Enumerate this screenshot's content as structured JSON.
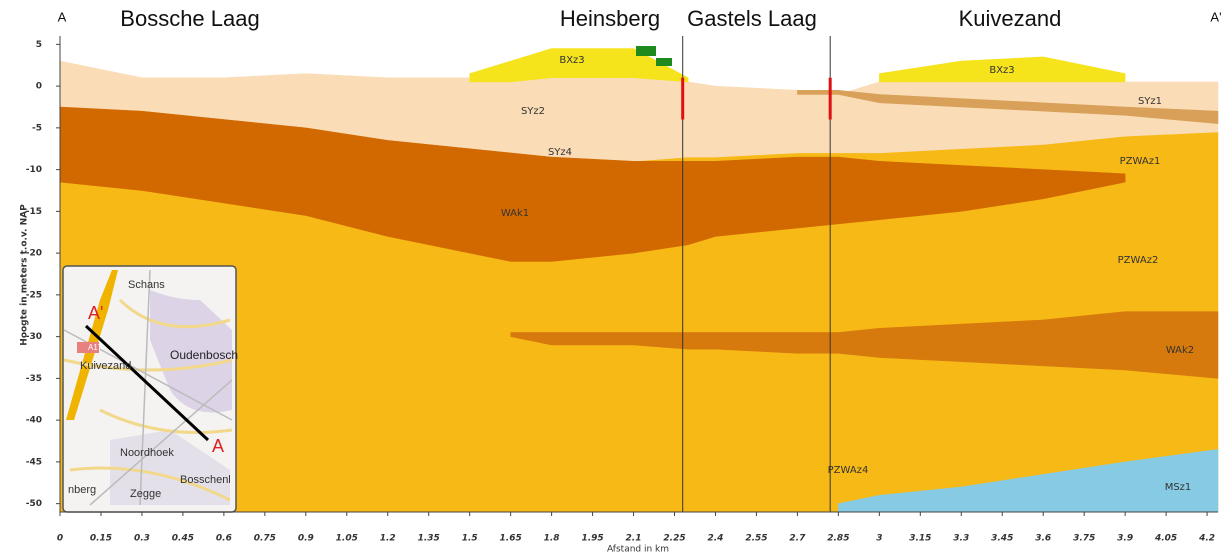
{
  "chart_data": {
    "type": "cross-section",
    "section_labels": [
      "A",
      "Bossche Laag",
      "Heinsberg",
      "Gastels Laag",
      "Kuivezand",
      "A'"
    ],
    "x_label": "Afstand in km",
    "y_label": "Hoogte in meters t.o.v. NAP",
    "xlim": [
      0,
      4.24
    ],
    "ylim": [
      -51,
      6
    ],
    "xticks": [
      0,
      0.15,
      0.3,
      0.45,
      0.6,
      0.75,
      0.9,
      1.05,
      1.2,
      1.35,
      1.5,
      1.65,
      1.8,
      1.95,
      2.1,
      2.25,
      2.4,
      2.55,
      2.7,
      2.85,
      3,
      3.15,
      3.3,
      3.45,
      3.6,
      3.75,
      3.9,
      4.05,
      4.2
    ],
    "yticks": [
      5,
      0,
      -5,
      -10,
      -15,
      -20,
      -25,
      -30,
      -35,
      -40,
      -45,
      -50
    ],
    "boundaries": [
      2.28,
      2.82
    ],
    "x": [
      0,
      0.3,
      0.6,
      0.9,
      1.2,
      1.5,
      1.65,
      1.8,
      2.1,
      2.3,
      2.4,
      2.7,
      2.85,
      3.0,
      3.3,
      3.6,
      3.9,
      4.24
    ],
    "series": [
      {
        "color": "#f7b916",
        "values": [
          -2.5,
          -3,
          -4,
          -5,
          -6.5,
          -7.5,
          -8,
          -8.5,
          -9,
          -8.5,
          -8.5,
          -8,
          -8,
          -8,
          -7.5,
          -7,
          -6,
          -5.5
        ],
        "base": [
          -51,
          -51,
          -51,
          -51,
          -51,
          -51,
          -51,
          -51,
          -51,
          -51,
          -51,
          -51,
          -51,
          -51,
          -51,
          -51,
          -51,
          -51
        ]
      },
      {
        "color": "#fadcb6",
        "values": [
          3,
          1,
          1,
          1.5,
          1,
          1,
          1,
          1,
          1,
          0.5,
          0,
          -0.5,
          -1,
          0.5,
          0.5,
          0.5,
          0.5,
          0.5
        ],
        "base": [
          -2.5,
          -3,
          -4,
          -5,
          -6.5,
          -7.5,
          -8,
          -8.5,
          -9,
          -8.5,
          -8.5,
          -8,
          -8,
          -8,
          -7.5,
          -7,
          -6,
          -5.5
        ]
      },
      {
        "color": "#f5e31c",
        "values": [
          null,
          null,
          null,
          null,
          null,
          1.5,
          3,
          4.5,
          4.5,
          1,
          null,
          null,
          null,
          1.5,
          3,
          3.5,
          1.5,
          null
        ],
        "base": [
          null,
          null,
          null,
          null,
          null,
          0.5,
          0.5,
          1,
          1,
          0.5,
          null,
          null,
          null,
          0.5,
          0.5,
          0.5,
          0.5,
          null
        ]
      },
      {
        "color": "#d8a058",
        "values": [
          null,
          null,
          null,
          null,
          null,
          null,
          null,
          null,
          null,
          null,
          null,
          -0.5,
          -0.5,
          -1,
          -1.5,
          -2,
          -2.5,
          -3
        ],
        "base": [
          null,
          null,
          null,
          null,
          null,
          null,
          null,
          null,
          null,
          null,
          null,
          -1,
          -1,
          -2,
          -2.5,
          -3,
          -3.5,
          -4.5
        ]
      },
      {
        "color": "#d26900",
        "values": [
          -2.5,
          -3,
          -4,
          -5,
          -6.5,
          -7.5,
          -8,
          -8.5,
          -9,
          -9,
          -9,
          -8.5,
          -8.5,
          -9,
          -9.5,
          -10,
          -10.5,
          null
        ],
        "base": [
          -11.5,
          -12.5,
          -14,
          -15.5,
          -18,
          -20,
          -21,
          -21,
          -20,
          -19,
          -18,
          -17,
          -16.5,
          -16,
          -15,
          -13.5,
          -11.5,
          null
        ]
      },
      {
        "color": "#d77a0e",
        "values": [
          null,
          null,
          null,
          null,
          null,
          null,
          -29.5,
          -29.5,
          -29.5,
          -29.5,
          -29.5,
          -29.5,
          -29.5,
          -29,
          -28.5,
          -28,
          -27,
          -27
        ],
        "base": [
          null,
          null,
          null,
          null,
          null,
          null,
          -30,
          -31,
          -31,
          -31.5,
          -31.5,
          -32,
          -32,
          -32.5,
          -33,
          -33.5,
          -34,
          -35
        ]
      },
      {
        "color": "#86cae4",
        "values": [
          null,
          null,
          null,
          null,
          null,
          null,
          null,
          null,
          null,
          null,
          null,
          null,
          -50,
          -49,
          -48,
          -46.5,
          -45,
          -43.5
        ],
        "base": [
          null,
          null,
          null,
          null,
          null,
          null,
          null,
          null,
          null,
          null,
          null,
          null,
          -51,
          -51,
          -51,
          -51,
          -51,
          -51
        ]
      }
    ],
    "layer_labels": [
      "BXz3",
      "BXz3",
      "SYz2",
      "SYz1",
      "SYz4",
      "PZWAz1",
      "WAk1",
      "PZWAz2",
      "WAk2",
      "PZWAz4",
      "MSz1"
    ],
    "inset_map": {
      "labels": [
        "Schans",
        "A'",
        "A17",
        "Oudenbosch",
        "Kuivezand",
        "A",
        "Noordhoek",
        "nberg",
        "Zegge",
        "Bosschenl"
      ]
    }
  }
}
